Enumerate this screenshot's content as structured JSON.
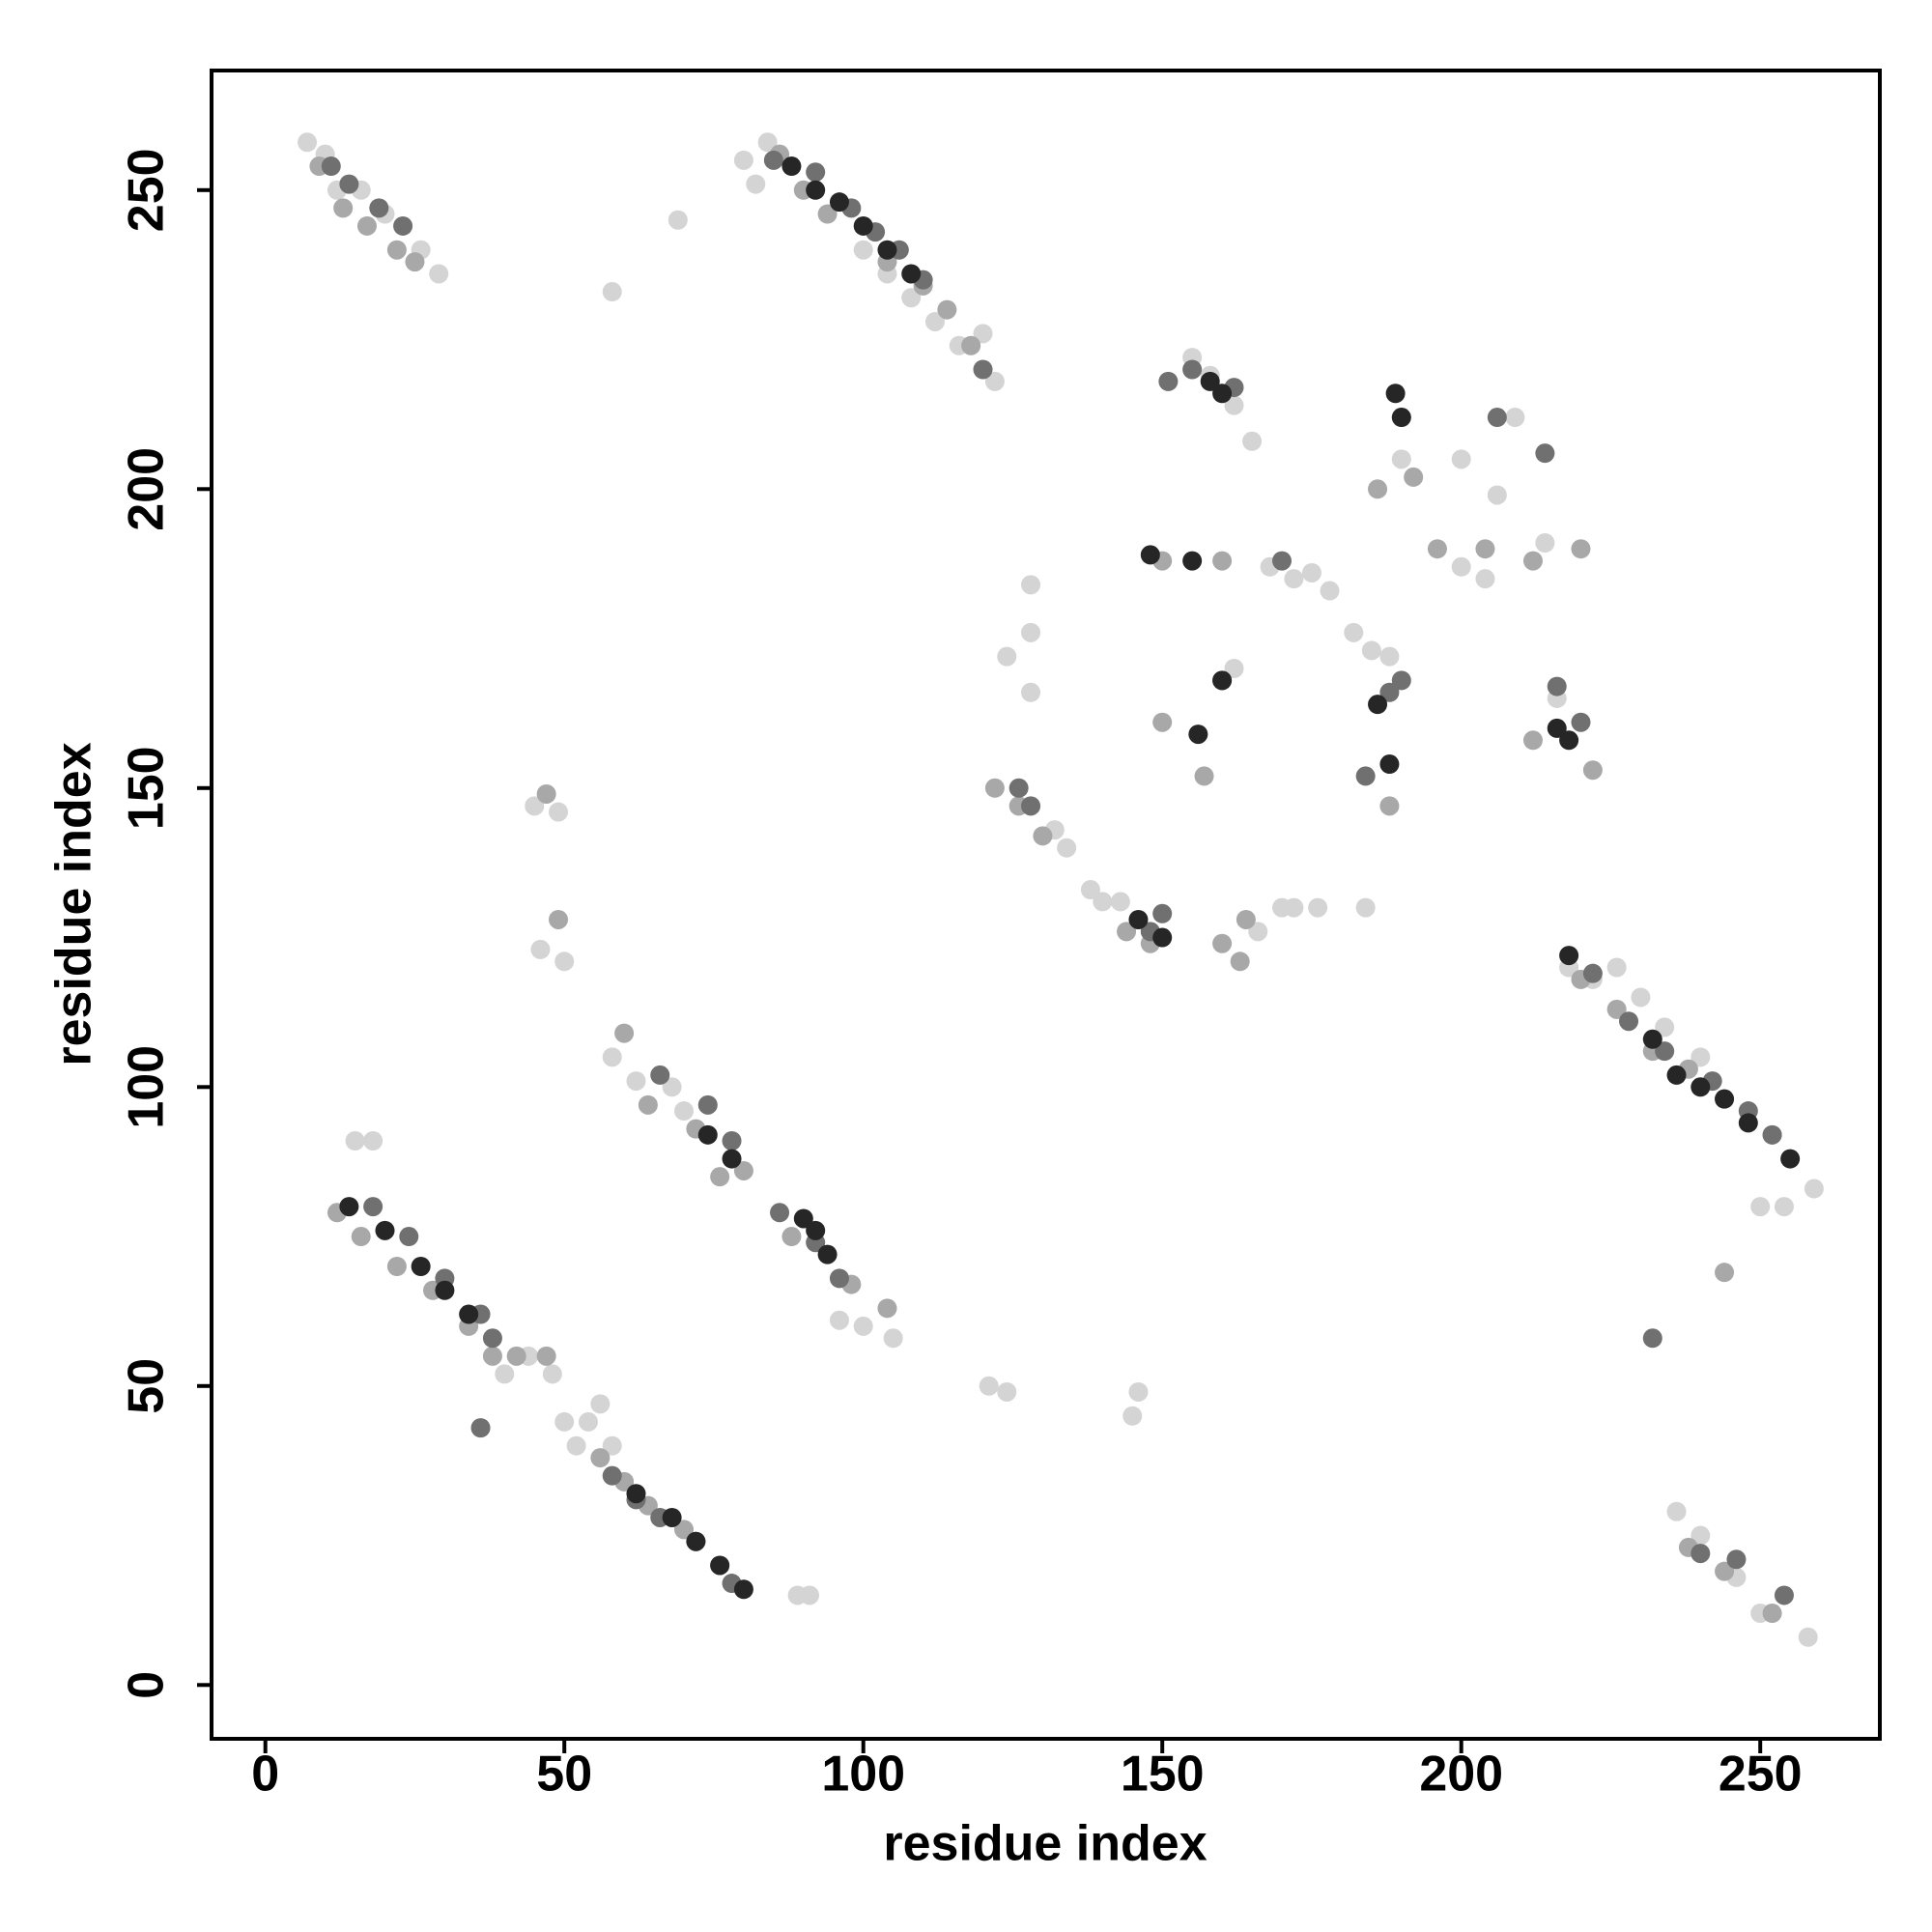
{
  "chart_data": {
    "type": "scatter",
    "xlabel": "residue index",
    "ylabel": "residue index",
    "xlim": [
      -9,
      270
    ],
    "ylim": [
      -9,
      270
    ],
    "xticks": [
      0,
      50,
      100,
      150,
      200,
      250
    ],
    "yticks": [
      0,
      50,
      100,
      150,
      200,
      250
    ],
    "series": [
      {
        "color": "#d4d4d4",
        "x": [
          7,
          10,
          12,
          16,
          20,
          26,
          29,
          80,
          82,
          84,
          100,
          104,
          108,
          112,
          116,
          120,
          122,
          15,
          18,
          40,
          44,
          48,
          50,
          36,
          52,
          54,
          56,
          58,
          89,
          91,
          58,
          62,
          68,
          70,
          96,
          100,
          105,
          218,
          222,
          226,
          230,
          234,
          240,
          250,
          254,
          259,
          236,
          240,
          246,
          250,
          258,
          45,
          49,
          50,
          46,
          69,
          58,
          121,
          124,
          128,
          145,
          146,
          124,
          128,
          132,
          134,
          138,
          140,
          143,
          166,
          170,
          172,
          176,
          184,
          155,
          158,
          162,
          165,
          168,
          172,
          175,
          178,
          182,
          185,
          188,
          190,
          200,
          206,
          209,
          214,
          216,
          162,
          200,
          204,
          128
        ],
        "values": [
          258,
          256,
          250,
          250,
          246,
          240,
          236,
          255,
          251,
          258,
          240,
          236,
          232,
          228,
          224,
          226,
          218,
          91,
          91,
          52,
          55,
          52,
          44,
          43,
          40,
          44,
          47,
          40,
          15,
          15,
          105,
          101,
          100,
          96,
          61,
          60,
          58,
          120,
          118,
          120,
          115,
          110,
          105,
          80,
          80,
          83,
          29,
          25,
          18,
          12,
          8,
          147,
          146,
          121,
          123,
          245,
          233,
          50,
          49,
          166,
          45,
          49,
          172,
          176,
          143,
          140,
          133,
          131,
          131,
          126,
          130,
          130,
          130,
          130,
          222,
          219,
          214,
          208,
          187,
          185,
          186,
          183,
          176,
          173,
          172,
          205,
          205,
          199,
          212,
          191,
          165,
          170,
          187,
          185,
          184
        ]
      },
      {
        "color": "#a8a8a8",
        "x": [
          9,
          13,
          17,
          22,
          25,
          86,
          90,
          94,
          104,
          110,
          114,
          118,
          12,
          16,
          22,
          28,
          34,
          38,
          42,
          47,
          56,
          60,
          64,
          70,
          76,
          64,
          72,
          80,
          88,
          98,
          104,
          220,
          226,
          232,
          238,
          244,
          252,
          238,
          244,
          252,
          47,
          49,
          144,
          148,
          160,
          163,
          122,
          126,
          130,
          150,
          160,
          186,
          190,
          192,
          196,
          204,
          212,
          220,
          150,
          164,
          212,
          222,
          244,
          188,
          157,
          60,
          76
        ],
        "values": [
          254,
          247,
          244,
          240,
          238,
          256,
          250,
          246,
          238,
          234,
          230,
          224,
          79,
          75,
          70,
          66,
          60,
          55,
          55,
          55,
          38,
          34,
          30,
          26,
          20,
          97,
          93,
          86,
          75,
          67,
          63,
          118,
          113,
          106,
          103,
          98,
          92,
          23,
          19,
          12,
          149,
          128,
          126,
          124,
          124,
          121,
          150,
          147,
          142,
          188,
          188,
          200,
          212,
          202,
          190,
          190,
          188,
          190,
          161,
          128,
          158,
          153,
          69,
          147,
          152,
          109,
          85
        ]
      },
      {
        "color": "#707070",
        "x": [
          11,
          14,
          19,
          23,
          85,
          92,
          98,
          102,
          106,
          110,
          120,
          18,
          24,
          30,
          36,
          38,
          58,
          62,
          66,
          72,
          78,
          66,
          74,
          78,
          86,
          92,
          96,
          222,
          228,
          234,
          242,
          248,
          252,
          240,
          246,
          254,
          151,
          155,
          162,
          126,
          128,
          148,
          150,
          160,
          170,
          188,
          190,
          184,
          206,
          214,
          220,
          216,
          232,
          36
        ],
        "values": [
          254,
          251,
          247,
          244,
          255,
          253,
          247,
          243,
          240,
          235,
          220,
          80,
          75,
          68,
          62,
          58,
          35,
          31,
          28,
          24,
          17,
          102,
          97,
          91,
          79,
          74,
          68,
          119,
          111,
          106,
          101,
          96,
          92,
          22,
          21,
          15,
          218,
          220,
          217,
          150,
          147,
          126,
          129,
          168,
          188,
          166,
          168,
          152,
          212,
          206,
          161,
          167,
          58,
          43
        ]
      },
      {
        "color": "#262626",
        "x": [
          88,
          92,
          96,
          100,
          104,
          108,
          14,
          20,
          26,
          30,
          34,
          62,
          68,
          72,
          76,
          80,
          74,
          78,
          90,
          92,
          94,
          218,
          232,
          236,
          240,
          244,
          248,
          255,
          158,
          160,
          146,
          150,
          189,
          190,
          186,
          188,
          216,
          218,
          148,
          155,
          156,
          160
        ],
        "values": [
          254,
          250,
          248,
          244,
          240,
          236,
          80,
          76,
          70,
          66,
          62,
          32,
          28,
          24,
          20,
          16,
          92,
          88,
          78,
          76,
          72,
          122,
          108,
          102,
          100,
          98,
          94,
          88,
          218,
          216,
          128,
          125,
          216,
          212,
          164,
          154,
          160,
          158,
          189,
          188,
          159,
          168
        ]
      }
    ]
  }
}
